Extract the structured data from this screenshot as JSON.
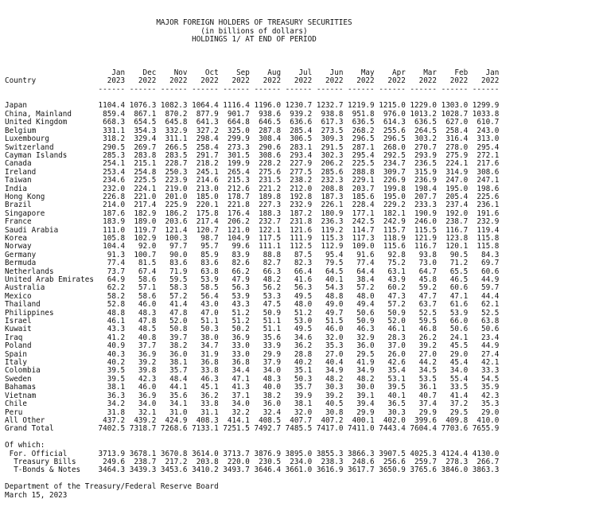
{
  "header": {
    "title": "MAJOR FOREIGN HOLDERS OF TREASURY SECURITIES",
    "subtitle": "(in billions of dollars)",
    "subtitle2": "HOLDINGS 1/ AT END OF PERIOD"
  },
  "table": {
    "country_label": "Country",
    "months": [
      {
        "month": "Jan",
        "year": "2023"
      },
      {
        "month": "Dec",
        "year": "2022"
      },
      {
        "month": "Nov",
        "year": "2022"
      },
      {
        "month": "Oct",
        "year": "2022"
      },
      {
        "month": "Sep",
        "year": "2022"
      },
      {
        "month": "Aug",
        "year": "2022"
      },
      {
        "month": "Jul",
        "year": "2022"
      },
      {
        "month": "Jun",
        "year": "2022"
      },
      {
        "month": "May",
        "year": "2022"
      },
      {
        "month": "Apr",
        "year": "2022"
      },
      {
        "month": "Mar",
        "year": "2022"
      },
      {
        "month": "Feb",
        "year": "2022"
      },
      {
        "month": "Jan",
        "year": "2022"
      }
    ],
    "rows": [
      {
        "country": "Japan",
        "values": [
          "1104.4",
          "1076.3",
          "1082.3",
          "1064.4",
          "1116.4",
          "1196.0",
          "1230.7",
          "1232.7",
          "1219.9",
          "1215.0",
          "1229.0",
          "1303.0",
          "1299.9"
        ]
      },
      {
        "country": "China, Mainland",
        "values": [
          "859.4",
          "867.1",
          "870.2",
          "877.9",
          "901.7",
          "938.6",
          "939.2",
          "938.8",
          "951.8",
          "976.0",
          "1013.2",
          "1028.7",
          "1033.8"
        ]
      },
      {
        "country": "United Kingdom",
        "values": [
          "668.3",
          "654.5",
          "645.8",
          "641.3",
          "664.8",
          "646.5",
          "636.6",
          "617.3",
          "636.5",
          "614.3",
          "636.5",
          "627.0",
          "610.7"
        ]
      },
      {
        "country": "Belgium",
        "values": [
          "331.1",
          "354.3",
          "332.9",
          "327.2",
          "325.0",
          "287.8",
          "285.4",
          "273.5",
          "268.2",
          "255.6",
          "264.5",
          "258.4",
          "243.0"
        ]
      },
      {
        "country": "Luxembourg",
        "values": [
          "318.2",
          "329.4",
          "311.1",
          "298.4",
          "299.9",
          "308.4",
          "306.5",
          "309.3",
          "296.5",
          "296.5",
          "303.2",
          "316.4",
          "313.0"
        ]
      },
      {
        "country": "Switzerland",
        "values": [
          "290.5",
          "269.7",
          "266.5",
          "258.4",
          "273.3",
          "290.6",
          "283.1",
          "291.5",
          "287.1",
          "268.0",
          "270.7",
          "278.0",
          "295.4"
        ]
      },
      {
        "country": "Cayman Islands",
        "values": [
          "285.3",
          "283.8",
          "283.5",
          "291.7",
          "301.5",
          "308.6",
          "293.4",
          "302.3",
          "295.4",
          "292.5",
          "293.9",
          "275.9",
          "272.1"
        ]
      },
      {
        "country": "Canada",
        "values": [
          "254.1",
          "215.1",
          "228.7",
          "218.2",
          "199.9",
          "228.2",
          "227.9",
          "206.2",
          "225.5",
          "234.7",
          "236.5",
          "224.1",
          "217.6"
        ]
      },
      {
        "country": "Ireland",
        "values": [
          "253.4",
          "254.8",
          "250.3",
          "245.1",
          "265.4",
          "275.6",
          "277.5",
          "285.6",
          "288.8",
          "309.7",
          "315.9",
          "314.9",
          "308.6"
        ]
      },
      {
        "country": "Taiwan",
        "values": [
          "234.6",
          "225.5",
          "223.9",
          "214.6",
          "215.3",
          "231.5",
          "238.2",
          "232.3",
          "229.1",
          "226.9",
          "236.9",
          "247.0",
          "247.1"
        ]
      },
      {
        "country": "India",
        "values": [
          "232.0",
          "224.1",
          "219.0",
          "213.0",
          "212.6",
          "221.2",
          "212.0",
          "208.8",
          "203.7",
          "199.8",
          "198.4",
          "195.0",
          "198.6"
        ]
      },
      {
        "country": "Hong Kong",
        "values": [
          "226.8",
          "221.0",
          "201.0",
          "185.0",
          "178.7",
          "189.8",
          "192.8",
          "187.3",
          "185.6",
          "195.0",
          "207.7",
          "205.4",
          "225.6"
        ]
      },
      {
        "country": "Brazil",
        "values": [
          "214.0",
          "217.4",
          "225.9",
          "220.1",
          "221.8",
          "227.3",
          "232.9",
          "226.1",
          "228.4",
          "229.2",
          "233.3",
          "237.4",
          "236.1"
        ]
      },
      {
        "country": "Singapore",
        "values": [
          "187.6",
          "182.9",
          "186.2",
          "175.8",
          "176.4",
          "188.3",
          "187.2",
          "180.9",
          "177.1",
          "182.1",
          "190.9",
          "192.0",
          "191.6"
        ]
      },
      {
        "country": "France",
        "values": [
          "183.9",
          "189.0",
          "203.6",
          "217.4",
          "206.2",
          "232.7",
          "231.8",
          "236.3",
          "242.5",
          "242.9",
          "246.0",
          "238.7",
          "232.9"
        ]
      },
      {
        "country": "Saudi Arabia",
        "values": [
          "111.0",
          "119.7",
          "121.4",
          "120.7",
          "121.0",
          "122.1",
          "121.6",
          "119.2",
          "114.7",
          "115.7",
          "115.5",
          "116.7",
          "119.4"
        ]
      },
      {
        "country": "Korea",
        "values": [
          "105.8",
          "102.9",
          "100.3",
          "98.7",
          "104.9",
          "117.5",
          "111.9",
          "115.3",
          "117.3",
          "118.9",
          "121.9",
          "123.8",
          "115.8"
        ]
      },
      {
        "country": "Norway",
        "values": [
          "104.4",
          "92.0",
          "97.7",
          "95.7",
          "99.6",
          "111.1",
          "112.5",
          "112.9",
          "109.0",
          "115.6",
          "116.7",
          "120.1",
          "115.8"
        ]
      },
      {
        "country": "Germany",
        "values": [
          "91.3",
          "100.7",
          "90.0",
          "85.9",
          "83.9",
          "88.8",
          "87.5",
          "95.4",
          "91.6",
          "92.8",
          "93.8",
          "90.5",
          "84.3"
        ]
      },
      {
        "country": "Bermuda",
        "values": [
          "77.4",
          "81.5",
          "83.6",
          "83.6",
          "82.6",
          "82.7",
          "82.3",
          "79.5",
          "77.4",
          "75.2",
          "73.0",
          "71.2",
          "69.7"
        ]
      },
      {
        "country": "Netherlands",
        "values": [
          "73.7",
          "67.4",
          "71.9",
          "63.8",
          "66.2",
          "66.3",
          "66.4",
          "64.5",
          "64.4",
          "63.1",
          "64.7",
          "65.5",
          "60.6"
        ]
      },
      {
        "country": "United Arab Emirates",
        "values": [
          "64.9",
          "58.6",
          "59.5",
          "53.9",
          "47.9",
          "48.2",
          "41.6",
          "40.1",
          "38.4",
          "43.9",
          "45.8",
          "46.5",
          "44.9"
        ]
      },
      {
        "country": "Australia",
        "values": [
          "62.2",
          "57.1",
          "58.3",
          "58.5",
          "56.3",
          "56.2",
          "56.3",
          "54.3",
          "57.2",
          "60.2",
          "59.2",
          "60.6",
          "59.7"
        ]
      },
      {
        "country": "Mexico",
        "values": [
          "58.2",
          "58.6",
          "57.2",
          "56.4",
          "53.9",
          "53.3",
          "49.5",
          "48.8",
          "48.0",
          "47.3",
          "47.7",
          "47.1",
          "44.4"
        ]
      },
      {
        "country": "Thailand",
        "values": [
          "52.8",
          "46.0",
          "41.4",
          "43.0",
          "43.3",
          "47.5",
          "48.0",
          "49.0",
          "49.4",
          "57.2",
          "63.7",
          "61.6",
          "62.1"
        ]
      },
      {
        "country": "Philippines",
        "values": [
          "48.8",
          "48.3",
          "47.8",
          "47.0",
          "51.2",
          "50.9",
          "51.2",
          "49.7",
          "50.6",
          "50.9",
          "52.5",
          "53.9",
          "52.5"
        ]
      },
      {
        "country": "Israel",
        "values": [
          "46.1",
          "47.8",
          "52.0",
          "51.1",
          "51.2",
          "51.1",
          "53.0",
          "51.5",
          "50.9",
          "52.0",
          "59.5",
          "66.0",
          "63.8"
        ]
      },
      {
        "country": "Kuwait",
        "values": [
          "43.3",
          "48.5",
          "50.8",
          "50.3",
          "50.2",
          "51.1",
          "49.5",
          "46.0",
          "46.3",
          "46.1",
          "46.8",
          "50.6",
          "50.6"
        ]
      },
      {
        "country": "Iraq",
        "values": [
          "41.2",
          "40.8",
          "39.7",
          "38.0",
          "36.9",
          "35.6",
          "34.6",
          "32.0",
          "32.9",
          "28.3",
          "26.2",
          "24.1",
          "23.4"
        ]
      },
      {
        "country": "Poland",
        "values": [
          "40.9",
          "37.7",
          "38.2",
          "34.7",
          "33.0",
          "33.9",
          "36.2",
          "35.3",
          "36.0",
          "37.0",
          "39.2",
          "45.5",
          "44.9"
        ]
      },
      {
        "country": "Spain",
        "values": [
          "40.3",
          "36.9",
          "36.0",
          "31.9",
          "33.0",
          "29.9",
          "28.8",
          "27.0",
          "29.5",
          "26.0",
          "27.0",
          "29.0",
          "27.4"
        ]
      },
      {
        "country": "Italy",
        "values": [
          "40.2",
          "39.2",
          "38.1",
          "36.8",
          "36.8",
          "37.9",
          "40.2",
          "40.4",
          "41.9",
          "42.6",
          "44.2",
          "45.4",
          "42.1"
        ]
      },
      {
        "country": "Colombia",
        "values": [
          "39.5",
          "39.8",
          "35.7",
          "33.8",
          "34.4",
          "34.0",
          "35.1",
          "34.9",
          "34.9",
          "35.4",
          "34.5",
          "34.0",
          "33.3"
        ]
      },
      {
        "country": "Sweden",
        "values": [
          "39.5",
          "42.3",
          "48.4",
          "46.3",
          "47.1",
          "48.3",
          "50.3",
          "48.2",
          "48.2",
          "53.1",
          "53.5",
          "55.4",
          "54.5"
        ]
      },
      {
        "country": "Bahamas",
        "values": [
          "38.1",
          "46.0",
          "44.1",
          "45.1",
          "41.3",
          "40.0",
          "35.7",
          "30.3",
          "30.0",
          "39.5",
          "36.1",
          "33.5",
          "35.9"
        ]
      },
      {
        "country": "Vietnam",
        "values": [
          "36.3",
          "36.9",
          "35.6",
          "36.2",
          "37.1",
          "38.2",
          "39.9",
          "39.2",
          "39.1",
          "40.1",
          "40.7",
          "41.4",
          "42.3"
        ]
      },
      {
        "country": "Chile",
        "values": [
          "34.2",
          "34.0",
          "34.1",
          "33.8",
          "34.0",
          "36.0",
          "38.1",
          "40.5",
          "39.4",
          "36.5",
          "37.4",
          "37.2",
          "35.3"
        ]
      },
      {
        "country": "Peru",
        "values": [
          "31.8",
          "32.1",
          "31.0",
          "31.1",
          "32.2",
          "32.4",
          "32.0",
          "30.8",
          "29.9",
          "30.3",
          "29.9",
          "29.5",
          "29.0"
        ]
      },
      {
        "country": "All Other",
        "values": [
          "437.2",
          "439.2",
          "424.9",
          "408.3",
          "414.1",
          "408.5",
          "407.7",
          "407.2",
          "400.1",
          "402.0",
          "399.6",
          "409.8",
          "410.0"
        ]
      },
      {
        "country": "Grand Total",
        "values": [
          "7402.5",
          "7318.7",
          "7268.6",
          "7133.1",
          "7251.5",
          "7492.7",
          "7485.5",
          "7417.0",
          "7411.0",
          "7443.4",
          "7604.4",
          "7703.6",
          "7655.9"
        ]
      }
    ],
    "of_which_label": "Of which:",
    "sub_rows": [
      {
        "country": " For. Official",
        "values": [
          "3713.9",
          "3678.1",
          "3670.8",
          "3614.0",
          "3713.7",
          "3876.9",
          "3895.0",
          "3855.3",
          "3866.3",
          "3907.5",
          "4025.3",
          "4124.4",
          "4130.0"
        ]
      },
      {
        "country": "  Treasury Bills",
        "values": [
          "249.6",
          "238.7",
          "217.2",
          "203.8",
          "220.0",
          "230.5",
          "234.0",
          "238.3",
          "248.6",
          "256.6",
          "259.7",
          "278.3",
          "266.7"
        ]
      },
      {
        "country": "  T-Bonds & Notes",
        "values": [
          "3464.3",
          "3439.3",
          "3453.6",
          "3410.2",
          "3493.7",
          "3646.4",
          "3661.0",
          "3616.9",
          "3617.7",
          "3650.9",
          "3765.6",
          "3846.0",
          "3863.3"
        ]
      }
    ]
  },
  "footer": {
    "source": "Department of the Treasury/Federal Reserve Board",
    "date": "March 15, 2023"
  }
}
